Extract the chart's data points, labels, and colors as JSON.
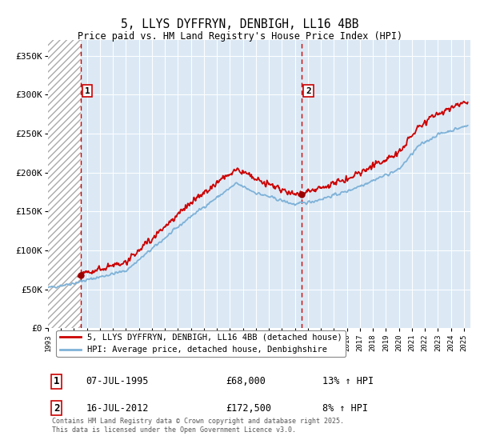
{
  "title": "5, LLYS DYFFRYN, DENBIGH, LL16 4BB",
  "subtitle": "Price paid vs. HM Land Registry's House Price Index (HPI)",
  "ylabel_ticks": [
    "£0",
    "£50K",
    "£100K",
    "£150K",
    "£200K",
    "£250K",
    "£300K",
    "£350K"
  ],
  "ytick_values": [
    0,
    50000,
    100000,
    150000,
    200000,
    250000,
    300000,
    350000
  ],
  "ylim": [
    0,
    370000
  ],
  "xlim_start": 1993.0,
  "xlim_end": 2025.5,
  "hpi_color": "#7fb2d8",
  "price_color": "#cc0000",
  "marker_color": "#990000",
  "dashed_line_color": "#cc0000",
  "background_color": "#ffffff",
  "chart_bg_color": "#dce9f5",
  "grid_color": "#ffffff",
  "legend_label_price": "5, LLYS DYFFRYN, DENBIGH, LL16 4BB (detached house)",
  "legend_label_hpi": "HPI: Average price, detached house, Denbighshire",
  "sale1_date": "07-JUL-1995",
  "sale1_price": "£68,000",
  "sale1_hpi": "13% ↑ HPI",
  "sale1_x": 1995.52,
  "sale1_y": 68000,
  "sale1_label": "1",
  "sale2_date": "16-JUL-2012",
  "sale2_price": "£172,500",
  "sale2_hpi": "8% ↑ HPI",
  "sale2_x": 2012.54,
  "sale2_y": 172500,
  "sale2_label": "2",
  "footer": "Contains HM Land Registry data © Crown copyright and database right 2025.\nThis data is licensed under the Open Government Licence v3.0.",
  "xtick_years": [
    1993,
    1994,
    1995,
    1996,
    1997,
    1998,
    1999,
    2000,
    2001,
    2002,
    2003,
    2004,
    2005,
    2006,
    2007,
    2008,
    2009,
    2010,
    2011,
    2012,
    2013,
    2014,
    2015,
    2016,
    2017,
    2018,
    2019,
    2020,
    2021,
    2022,
    2023,
    2024,
    2025
  ]
}
